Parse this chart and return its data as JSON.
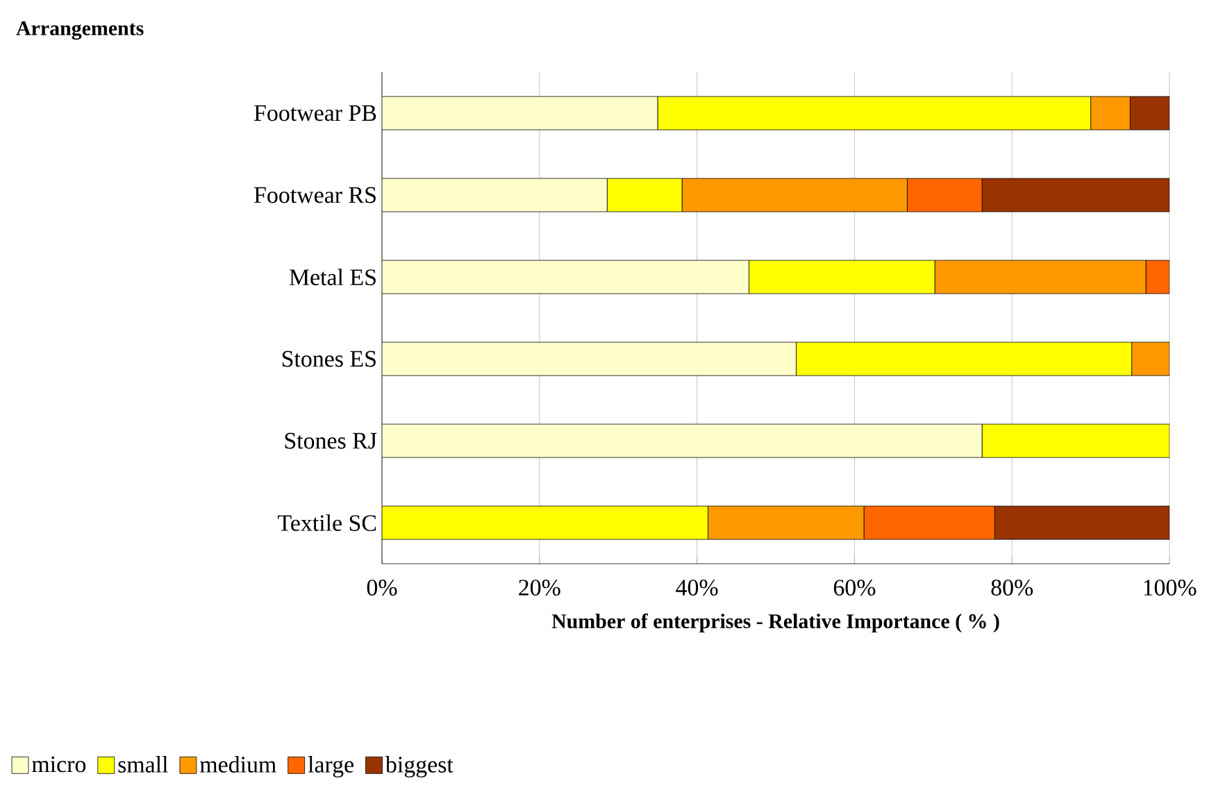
{
  "chart_data": {
    "type": "bar",
    "orientation": "horizontal",
    "stacked": true,
    "title": "Arrangements",
    "xlabel": "Number of enterprises - Relative Importance ( %  )",
    "categories": [
      "Footwear PB",
      "Footwear RS",
      "Metal ES",
      "Stones ES",
      "Stones RJ",
      "Textile SC"
    ],
    "series": [
      {
        "name": "micro",
        "color": "#ffffcc",
        "values": [
          35,
          28.6,
          46.6,
          52.6,
          76.2,
          0
        ]
      },
      {
        "name": "small",
        "color": "#ffff00",
        "values": [
          55,
          9.5,
          23.6,
          42.6,
          23.8,
          41.4
        ]
      },
      {
        "name": "medium",
        "color": "#ff9900",
        "values": [
          5,
          28.6,
          26.8,
          4.8,
          0,
          19.8
        ]
      },
      {
        "name": "large",
        "color": "#ff6600",
        "values": [
          0,
          9.5,
          3,
          0,
          0,
          16.6
        ]
      },
      {
        "name": "biggest",
        "color": "#993300",
        "values": [
          5,
          23.8,
          0,
          0,
          0,
          22.2
        ]
      }
    ],
    "xlim": [
      0,
      100
    ],
    "xticks": [
      {
        "value": 0,
        "label": "0%"
      },
      {
        "value": 20,
        "label": "20%"
      },
      {
        "value": 40,
        "label": "40%"
      },
      {
        "value": 60,
        "label": "60%"
      },
      {
        "value": 80,
        "label": "80%"
      },
      {
        "value": 100,
        "label": "100%"
      }
    ],
    "grid": "x",
    "legend": "bottom"
  }
}
